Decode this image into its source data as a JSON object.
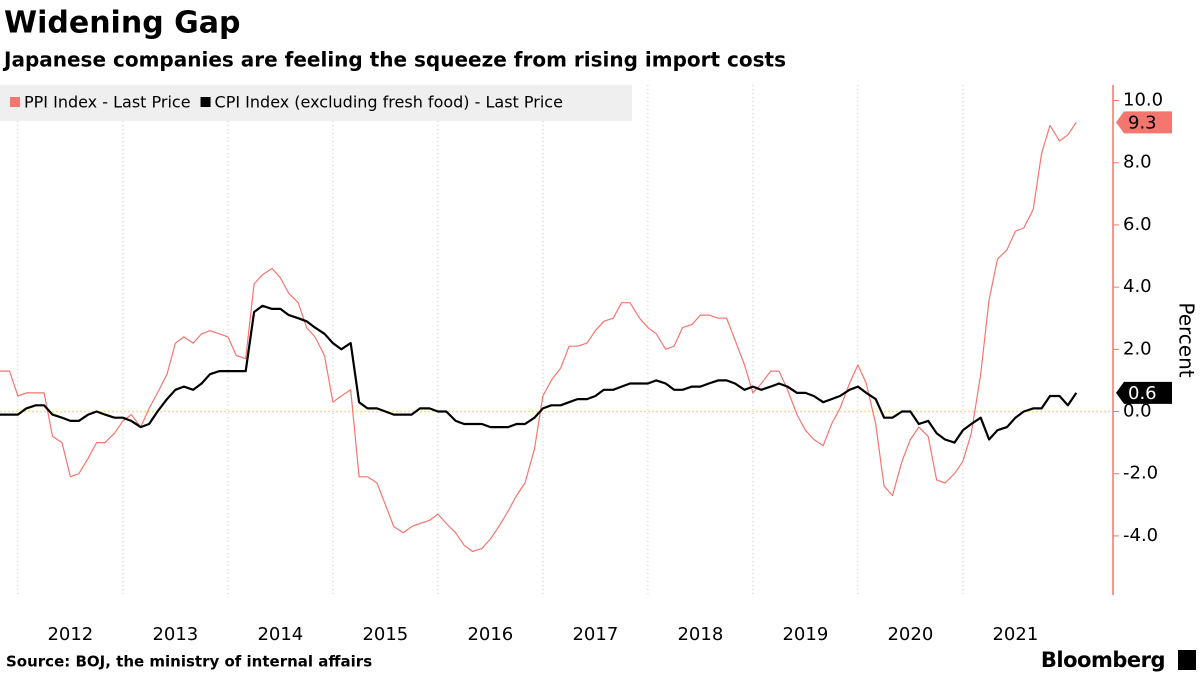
{
  "chart_data": {
    "type": "line",
    "title": "Widening Gap",
    "subtitle": "Japanese companies are feeling the squeeze from rising import costs",
    "y_label": "Percent",
    "source": "Source: BOJ, the ministry of internal affairs",
    "brand": "Bloomberg",
    "x": [
      2011.83,
      2011.92,
      2012.0,
      2012.08,
      2012.17,
      2012.25,
      2012.33,
      2012.42,
      2012.5,
      2012.58,
      2012.67,
      2012.75,
      2012.83,
      2012.92,
      2013.0,
      2013.08,
      2013.17,
      2013.25,
      2013.33,
      2013.42,
      2013.5,
      2013.58,
      2013.67,
      2013.75,
      2013.83,
      2013.92,
      2014.0,
      2014.08,
      2014.17,
      2014.25,
      2014.33,
      2014.42,
      2014.5,
      2014.58,
      2014.67,
      2014.75,
      2014.83,
      2014.92,
      2015.0,
      2015.08,
      2015.17,
      2015.25,
      2015.33,
      2015.42,
      2015.5,
      2015.58,
      2015.67,
      2015.75,
      2015.83,
      2015.92,
      2016.0,
      2016.08,
      2016.17,
      2016.25,
      2016.33,
      2016.42,
      2016.5,
      2016.58,
      2016.67,
      2016.75,
      2016.83,
      2016.92,
      2017.0,
      2017.08,
      2017.17,
      2017.25,
      2017.33,
      2017.42,
      2017.5,
      2017.58,
      2017.67,
      2017.75,
      2017.83,
      2017.92,
      2018.0,
      2018.08,
      2018.17,
      2018.25,
      2018.33,
      2018.42,
      2018.5,
      2018.58,
      2018.67,
      2018.75,
      2018.83,
      2018.92,
      2019.0,
      2019.08,
      2019.17,
      2019.25,
      2019.33,
      2019.42,
      2019.5,
      2019.58,
      2019.67,
      2019.75,
      2019.83,
      2019.92,
      2020.0,
      2020.08,
      2020.17,
      2020.25,
      2020.33,
      2020.42,
      2020.5,
      2020.58,
      2020.67,
      2020.75,
      2020.83,
      2020.92,
      2021.0,
      2021.08,
      2021.17,
      2021.25,
      2021.33,
      2021.42,
      2021.5,
      2021.58,
      2021.67,
      2021.75,
      2021.83,
      2021.92,
      2022.0,
      2022.08
    ],
    "series": [
      {
        "name": "PPI Index - Last Price",
        "color": "#f4766f",
        "width": 1.2,
        "values": [
          1.3,
          1.3,
          0.5,
          0.6,
          0.6,
          0.6,
          -0.8,
          -1.0,
          -2.1,
          -2.0,
          -1.5,
          -1.0,
          -1.0,
          -0.7,
          -0.3,
          -0.1,
          -0.5,
          0.1,
          0.6,
          1.2,
          2.2,
          2.4,
          2.2,
          2.5,
          2.6,
          2.5,
          2.4,
          1.8,
          1.7,
          4.1,
          4.4,
          4.6,
          4.3,
          3.8,
          3.5,
          2.7,
          2.4,
          1.8,
          0.3,
          0.5,
          0.7,
          -2.1,
          -2.1,
          -2.3,
          -3.0,
          -3.7,
          -3.9,
          -3.7,
          -3.6,
          -3.5,
          -3.3,
          -3.6,
          -3.9,
          -4.3,
          -4.5,
          -4.4,
          -4.1,
          -3.7,
          -3.2,
          -2.7,
          -2.3,
          -1.2,
          0.5,
          1.0,
          1.4,
          2.1,
          2.1,
          2.2,
          2.6,
          2.9,
          3.0,
          3.5,
          3.5,
          3.0,
          2.7,
          2.5,
          2.0,
          2.1,
          2.7,
          2.8,
          3.1,
          3.1,
          3.0,
          3.0,
          2.3,
          1.5,
          0.6,
          0.9,
          1.3,
          1.3,
          0.7,
          -0.1,
          -0.6,
          -0.9,
          -1.1,
          -0.4,
          0.1,
          0.9,
          1.5,
          0.9,
          -0.4,
          -2.4,
          -2.7,
          -1.6,
          -0.9,
          -0.5,
          -0.8,
          -2.2,
          -2.3,
          -2.0,
          -1.6,
          -0.7,
          1.2,
          3.6,
          4.9,
          5.2,
          5.8,
          5.9,
          6.5,
          8.3,
          9.2,
          8.7,
          8.9,
          9.3
        ]
      },
      {
        "name": "CPI Index (excluding fresh food) - Last Price",
        "color": "#000000",
        "width": 2.2,
        "values": [
          -0.1,
          -0.1,
          -0.1,
          0.1,
          0.2,
          0.2,
          -0.1,
          -0.2,
          -0.3,
          -0.3,
          -0.1,
          0.0,
          -0.1,
          -0.2,
          -0.2,
          -0.3,
          -0.5,
          -0.4,
          0.0,
          0.4,
          0.7,
          0.8,
          0.7,
          0.9,
          1.2,
          1.3,
          1.3,
          1.3,
          1.3,
          3.2,
          3.4,
          3.3,
          3.3,
          3.1,
          3.0,
          2.9,
          2.7,
          2.5,
          2.2,
          2.0,
          2.2,
          0.3,
          0.1,
          0.1,
          0.0,
          -0.1,
          -0.1,
          -0.1,
          0.1,
          0.1,
          0.0,
          0.0,
          -0.3,
          -0.4,
          -0.4,
          -0.4,
          -0.5,
          -0.5,
          -0.5,
          -0.4,
          -0.4,
          -0.2,
          0.1,
          0.2,
          0.2,
          0.3,
          0.4,
          0.4,
          0.5,
          0.7,
          0.7,
          0.8,
          0.9,
          0.9,
          0.9,
          1.0,
          0.9,
          0.7,
          0.7,
          0.8,
          0.8,
          0.9,
          1.0,
          1.0,
          0.9,
          0.7,
          0.8,
          0.7,
          0.8,
          0.9,
          0.8,
          0.6,
          0.6,
          0.5,
          0.3,
          0.4,
          0.5,
          0.7,
          0.8,
          0.6,
          0.4,
          -0.2,
          -0.2,
          0.0,
          0.0,
          -0.4,
          -0.3,
          -0.7,
          -0.9,
          -1.0,
          -0.6,
          -0.4,
          -0.2,
          -0.9,
          -0.6,
          -0.5,
          -0.2,
          0.0,
          0.1,
          0.1,
          0.5,
          0.5,
          0.2,
          0.6
        ]
      }
    ],
    "xlim": [
      2011.83,
      2022.42
    ],
    "xticks": [
      2012,
      2013,
      2014,
      2015,
      2016,
      2017,
      2018,
      2019,
      2020,
      2021
    ],
    "ylim": [
      -5.9,
      10.5
    ],
    "yticks": [
      {
        "value": -4,
        "label": "-4.0"
      },
      {
        "value": -2,
        "label": "-2.0"
      },
      {
        "value": 0,
        "label": "0.0"
      },
      {
        "value": 2,
        "label": "2.0"
      },
      {
        "value": 4,
        "label": "4.0"
      },
      {
        "value": 6,
        "label": "6.0"
      },
      {
        "value": 8,
        "label": "8.0"
      },
      {
        "value": 10,
        "label": "10.0"
      }
    ],
    "axis_color": "#f4766f",
    "zero_line_color": "#f5e66a",
    "grid": true,
    "legend": "top-left"
  }
}
